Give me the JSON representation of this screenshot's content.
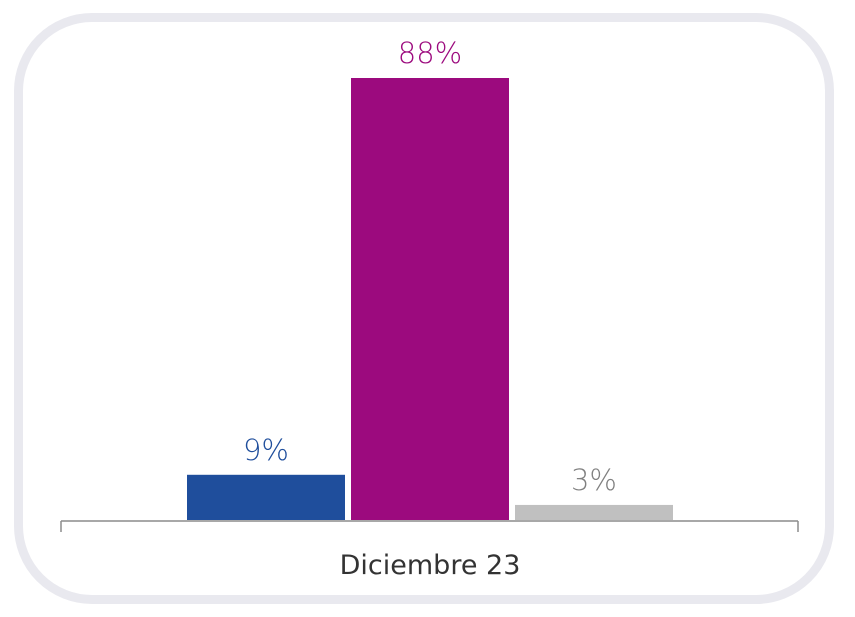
{
  "chart_data": {
    "type": "bar",
    "categories": [
      "Diciembre 23"
    ],
    "series": [
      {
        "values": [
          9
        ],
        "label": "9%",
        "color": "#1f4e9c"
      },
      {
        "values": [
          88
        ],
        "label": "88%",
        "color": "#9c0a7e"
      },
      {
        "values": [
          3
        ],
        "label": "3%",
        "color": "#c0c0c0"
      }
    ],
    "label_colors": [
      "#1f4e9c",
      "#9c0a7e",
      "#808080"
    ],
    "ylim": [
      0,
      88
    ],
    "grid": false,
    "legend": "none"
  }
}
